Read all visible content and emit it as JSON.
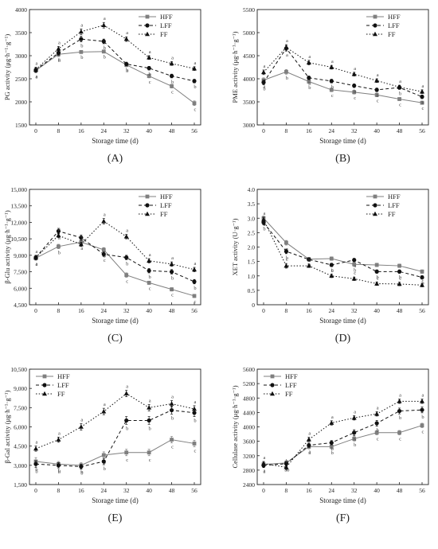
{
  "colors": {
    "HFF": "#7f7f7f",
    "LFF": "#111111",
    "FF": "#111111",
    "axis": "#222222"
  },
  "chart_data": [
    {
      "type": "line",
      "panel_label": "(A)",
      "ylabel": "PG activity (μg·h⁻¹·g⁻¹)",
      "xlabel": "Storage time (d)",
      "x": [
        0,
        8,
        16,
        24,
        32,
        40,
        48,
        56
      ],
      "ylim": [
        1500,
        4000
      ],
      "yticks": [
        "1500",
        "2000",
        "2500",
        "3000",
        "3500",
        "4000"
      ],
      "legend": "top-right",
      "series": [
        {
          "name": "HFF",
          "marker": "square",
          "line": "solid",
          "values": [
            2680,
            3030,
            3080,
            3090,
            2800,
            2560,
            2340,
            1970
          ],
          "err": [
            50,
            50,
            30,
            30,
            40,
            40,
            40,
            50
          ],
          "letters": [
            "a",
            "b",
            "b",
            "b",
            "b",
            "c",
            "c",
            "c"
          ]
        },
        {
          "name": "LFF",
          "marker": "circle",
          "line": "dashed",
          "values": [
            2690,
            3060,
            3360,
            3310,
            2820,
            2730,
            2560,
            2450
          ],
          "err": [
            50,
            50,
            60,
            50,
            40,
            40,
            40,
            40
          ],
          "letters": [
            "a",
            "a",
            "b",
            "b",
            "b",
            "b",
            "b",
            "b"
          ]
        },
        {
          "name": "FF",
          "marker": "triangle",
          "line": "dotted",
          "values": [
            2700,
            3150,
            3520,
            3660,
            3360,
            2960,
            2830,
            2720
          ],
          "err": [
            50,
            50,
            60,
            60,
            50,
            40,
            40,
            40
          ],
          "letters": [
            "a",
            "a",
            "a",
            "a",
            "a",
            "a",
            "a",
            "a"
          ]
        }
      ]
    },
    {
      "type": "line",
      "panel_label": "(B)",
      "ylabel": "PME activity (μg·h⁻¹·g⁻¹)",
      "xlabel": "Storage time (d)",
      "x": [
        0,
        8,
        16,
        24,
        32,
        40,
        48,
        56
      ],
      "ylim": [
        3000,
        5500
      ],
      "yticks": [
        "3000",
        "3500",
        "4000",
        "4500",
        "5000",
        "5500"
      ],
      "legend": "top-right",
      "series": [
        {
          "name": "HFF",
          "marker": "square",
          "line": "solid",
          "values": [
            3970,
            4150,
            3940,
            3760,
            3710,
            3650,
            3560,
            3480
          ],
          "err": [
            50,
            50,
            40,
            40,
            40,
            40,
            30,
            30
          ],
          "letters": [
            "a",
            "b",
            "b",
            "c",
            "c",
            "c",
            "c",
            "c"
          ]
        },
        {
          "name": "LFF",
          "marker": "circle",
          "line": "dashed",
          "values": [
            3920,
            4660,
            4020,
            3950,
            3850,
            3760,
            3810,
            3610
          ],
          "err": [
            50,
            60,
            40,
            40,
            40,
            40,
            40,
            40
          ],
          "letters": [
            "b",
            "a",
            "b",
            "b",
            "b",
            "b",
            "b",
            "b"
          ]
        },
        {
          "name": "FF",
          "marker": "triangle",
          "line": "dotted",
          "values": [
            4140,
            4680,
            4350,
            4250,
            4100,
            3960,
            3820,
            3720
          ],
          "err": [
            50,
            60,
            50,
            40,
            40,
            40,
            40,
            40
          ],
          "letters": [
            "a",
            "a",
            "a",
            "a",
            "a",
            "a",
            "a",
            "a"
          ]
        }
      ]
    },
    {
      "type": "line",
      "panel_label": "(C)",
      "ylabel": "β-Glu activity (μg·h⁻¹·g⁻¹)",
      "xlabel": "Storage time (d)",
      "x": [
        0,
        8,
        16,
        24,
        32,
        40,
        48,
        56
      ],
      "ylim": [
        4500,
        15000
      ],
      "yticks": [
        "4,500",
        "6,000",
        "7,500",
        "9,000",
        "10,500",
        "12,000",
        "13,500",
        "15,000"
      ],
      "legend": "top-right",
      "series": [
        {
          "name": "HFF",
          "marker": "square",
          "line": "solid",
          "values": [
            8750,
            9800,
            10200,
            9500,
            7200,
            6500,
            5900,
            5300
          ],
          "err": [
            200,
            200,
            200,
            200,
            200,
            150,
            150,
            150
          ],
          "letters": [
            "a",
            "b",
            "a",
            "b",
            "c",
            "c",
            "c",
            "c"
          ]
        },
        {
          "name": "LFF",
          "marker": "circle",
          "line": "dashed",
          "values": [
            8800,
            11200,
            10600,
            9100,
            8800,
            7600,
            7500,
            6600
          ],
          "err": [
            200,
            250,
            250,
            200,
            200,
            200,
            200,
            200
          ],
          "letters": [
            "a",
            "a",
            "a",
            "c",
            "b",
            "b",
            "b",
            "b"
          ]
        },
        {
          "name": "FF",
          "marker": "triangle",
          "line": "dotted",
          "values": [
            8800,
            10800,
            10000,
            12100,
            10700,
            8500,
            8200,
            7700
          ],
          "err": [
            200,
            200,
            200,
            250,
            200,
            200,
            200,
            200
          ],
          "letters": [
            "a",
            "a",
            "a",
            "a",
            "a",
            "a",
            "a",
            "a"
          ]
        }
      ]
    },
    {
      "type": "line",
      "panel_label": "(D)",
      "ylabel": "XET activity (U·g⁻¹)",
      "xlabel": "Storage time (d)",
      "x": [
        0,
        8,
        16,
        24,
        32,
        40,
        48,
        56
      ],
      "ylim": [
        0,
        4.0
      ],
      "yticks": [
        "0",
        "0.5",
        "1.0",
        "1.5",
        "2.0",
        "2.5",
        "3.0",
        "3.5",
        "4.0"
      ],
      "legend": "top-right",
      "series": [
        {
          "name": "HFF",
          "marker": "square",
          "line": "solid",
          "values": [
            3.0,
            2.15,
            1.58,
            1.6,
            1.4,
            1.38,
            1.35,
            1.15
          ],
          "err": [
            0.08,
            0.08,
            0.06,
            0.06,
            0.06,
            0.06,
            0.06,
            0.06
          ],
          "letters": [
            "a",
            "a",
            "a",
            "a",
            "b",
            "a",
            "a",
            "a"
          ]
        },
        {
          "name": "LFF",
          "marker": "circle",
          "line": "dashed",
          "values": [
            2.85,
            1.85,
            1.57,
            1.38,
            1.55,
            1.15,
            1.15,
            0.95
          ],
          "err": [
            0.08,
            0.08,
            0.06,
            0.06,
            0.06,
            0.06,
            0.06,
            0.06
          ],
          "letters": [
            "b",
            "b",
            "b",
            "b",
            "a",
            "b",
            "b",
            "b"
          ]
        },
        {
          "name": "FF",
          "marker": "triangle",
          "line": "dotted",
          "values": [
            2.95,
            1.35,
            1.35,
            1.0,
            0.9,
            0.73,
            0.72,
            0.68
          ],
          "err": [
            0.08,
            0.08,
            0.06,
            0.06,
            0.06,
            0.06,
            0.06,
            0.06
          ],
          "letters": [
            "a",
            "c",
            "b",
            "c",
            "c",
            "c",
            "c",
            "c"
          ]
        }
      ]
    },
    {
      "type": "line",
      "panel_label": "(E)",
      "ylabel": "β-Gal activity (μg·h⁻¹·g⁻¹)",
      "xlabel": "Storage time (d)",
      "x": [
        0,
        8,
        16,
        24,
        32,
        40,
        48,
        56
      ],
      "ylim": [
        1500,
        10500
      ],
      "yticks": [
        "1,500",
        "3,000",
        "4,500",
        "6,000",
        "7,500",
        "9,000",
        "10,500"
      ],
      "legend": "top-left",
      "series": [
        {
          "name": "HFF",
          "marker": "square",
          "line": "solid",
          "values": [
            3300,
            3100,
            3000,
            3800,
            4000,
            4000,
            5000,
            4700
          ],
          "err": [
            300,
            200,
            200,
            250,
            250,
            250,
            250,
            250
          ],
          "letters": [
            "b",
            "b",
            "b",
            "b",
            "c",
            "c",
            "c",
            "c"
          ]
        },
        {
          "name": "LFF",
          "marker": "circle",
          "line": "dashed",
          "values": [
            3100,
            3000,
            2900,
            3300,
            6500,
            6500,
            7300,
            7100
          ],
          "err": [
            250,
            200,
            200,
            250,
            300,
            300,
            300,
            300
          ],
          "letters": [
            "b",
            "b",
            "b",
            "b",
            "b",
            "b",
            "b",
            "b"
          ]
        },
        {
          "name": "FF",
          "marker": "triangle",
          "line": "dotted",
          "values": [
            4300,
            5000,
            6000,
            7200,
            8600,
            7500,
            7800,
            7400
          ],
          "err": [
            200,
            200,
            250,
            250,
            250,
            250,
            250,
            250
          ],
          "letters": [
            "a",
            "a",
            "a",
            "a",
            "a",
            "a",
            "a",
            "a"
          ]
        }
      ]
    },
    {
      "type": "line",
      "panel_label": "(F)",
      "ylabel": "Cellulase activity (μg·h⁻¹·g⁻¹)",
      "xlabel": "Storage time (d)",
      "x": [
        0,
        8,
        16,
        24,
        32,
        40,
        48,
        56
      ],
      "ylim": [
        2400,
        5600
      ],
      "yticks": [
        "2400",
        "2800",
        "3200",
        "3600",
        "4000",
        "4400",
        "4800",
        "5200",
        "5600"
      ],
      "legend": "top-left",
      "series": [
        {
          "name": "HFF",
          "marker": "square",
          "line": "solid",
          "values": [
            2960,
            3000,
            3450,
            3450,
            3670,
            3840,
            3840,
            4040
          ],
          "err": [
            60,
            60,
            60,
            60,
            60,
            60,
            60,
            60
          ],
          "letters": [
            "a",
            "a",
            "a",
            "b",
            "b",
            "c",
            "c",
            "c"
          ]
        },
        {
          "name": "LFF",
          "marker": "circle",
          "line": "dashed",
          "values": [
            2930,
            2980,
            3490,
            3560,
            3840,
            4100,
            4440,
            4470
          ],
          "err": [
            60,
            60,
            60,
            60,
            80,
            80,
            80,
            80
          ],
          "letters": [
            "a",
            "ab",
            "a",
            "b",
            "b",
            "b",
            "b",
            "b"
          ]
        },
        {
          "name": "FF",
          "marker": "triangle",
          "line": "dotted",
          "values": [
            2980,
            2880,
            3650,
            4110,
            4250,
            4360,
            4710,
            4710
          ],
          "err": [
            60,
            60,
            60,
            60,
            60,
            60,
            60,
            60
          ],
          "letters": [
            "a",
            "b",
            "a",
            "a",
            "a",
            "a",
            "a",
            "a"
          ]
        }
      ]
    }
  ]
}
